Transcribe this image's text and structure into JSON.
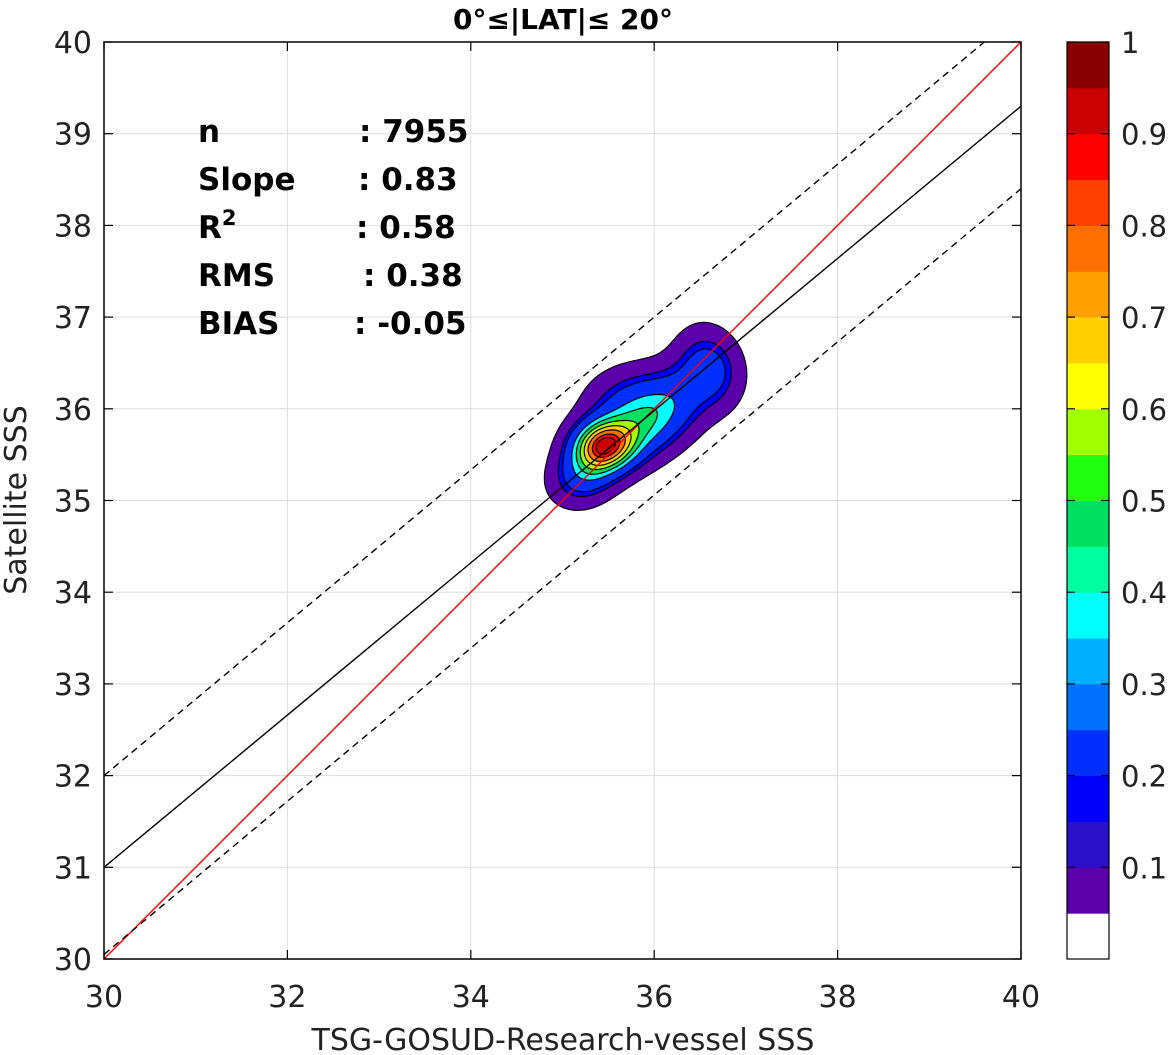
{
  "chart_data": {
    "type": "contour",
    "title": "0°≤|LAT|≤ 20°",
    "xlabel": "TSG-GOSUD-Research-vessel SSS",
    "ylabel": "Satellite SSS",
    "xlim": [
      30,
      40
    ],
    "ylim": [
      30,
      40
    ],
    "xticks": [
      "30",
      "32",
      "34",
      "36",
      "38",
      "40"
    ],
    "yticks": [
      "30",
      "31",
      "32",
      "33",
      "34",
      "35",
      "36",
      "37",
      "38",
      "39",
      "40"
    ],
    "grid": true,
    "reference_lines": [
      {
        "name": "1:1",
        "color": "#ff0000",
        "style": "solid",
        "points": [
          [
            30,
            30
          ],
          [
            40,
            40
          ]
        ]
      },
      {
        "name": "regression",
        "color": "#000000",
        "style": "solid",
        "points": [
          [
            30,
            31.0
          ],
          [
            40,
            39.3
          ]
        ]
      },
      {
        "name": "upper bound",
        "color": "#000000",
        "style": "dashed",
        "points": [
          [
            30,
            32.0
          ],
          [
            39.6,
            40
          ]
        ]
      },
      {
        "name": "lower bound",
        "color": "#000000",
        "style": "dashed",
        "points": [
          [
            30,
            30.05
          ],
          [
            40,
            38.4
          ]
        ]
      }
    ],
    "stats": [
      {
        "label": "n",
        "value": ": 7955"
      },
      {
        "label": "Slope",
        "value": ": 0.83"
      },
      {
        "label": "R",
        "sup": "2",
        "value": ": 0.58"
      },
      {
        "label": "RMS",
        "value": ": 0.38"
      },
      {
        "label": "BIAS",
        "value": ": -0.05"
      }
    ],
    "density_peaks": [
      {
        "x": 35.45,
        "y": 35.6,
        "sx": 0.22,
        "sy": 0.18,
        "rot": 0.15,
        "amp": 1.0
      },
      {
        "x": 35.85,
        "y": 35.85,
        "sx": 0.38,
        "sy": 0.25,
        "rot": 0.55,
        "amp": 0.62
      },
      {
        "x": 35.25,
        "y": 35.3,
        "sx": 0.25,
        "sy": 0.2,
        "rot": 0.6,
        "amp": 0.4
      },
      {
        "x": 36.6,
        "y": 36.45,
        "sx": 0.22,
        "sy": 0.28,
        "rot": 0.3,
        "amp": 0.34
      },
      {
        "x": 36.25,
        "y": 36.15,
        "sx": 0.3,
        "sy": 0.25,
        "rot": 0.7,
        "amp": 0.15
      },
      {
        "x": 35.6,
        "y": 36.2,
        "sx": 0.3,
        "sy": 0.2,
        "rot": 0.4,
        "amp": 0.12
      }
    ],
    "colorbar": {
      "levels": [
        0.05,
        0.1,
        0.15,
        0.2,
        0.25,
        0.3,
        0.35,
        0.4,
        0.45,
        0.5,
        0.55,
        0.6,
        0.65,
        0.7,
        0.75,
        0.8,
        0.85,
        0.9,
        0.95,
        1.0
      ],
      "colors": [
        "#ffffff",
        "#5b00aa",
        "#2a10c8",
        "#0000ff",
        "#0030ff",
        "#0070ff",
        "#00b0ff",
        "#00ffff",
        "#00ffa0",
        "#00e060",
        "#20ff10",
        "#a0ff00",
        "#ffff00",
        "#ffd000",
        "#ffa000",
        "#ff7000",
        "#ff4000",
        "#ff0000",
        "#cc0000",
        "#880000"
      ],
      "ticks": [
        "0.1",
        "0.2",
        "0.3",
        "0.4",
        "0.5",
        "0.6",
        "0.7",
        "0.8",
        "0.9",
        "1"
      ]
    }
  }
}
